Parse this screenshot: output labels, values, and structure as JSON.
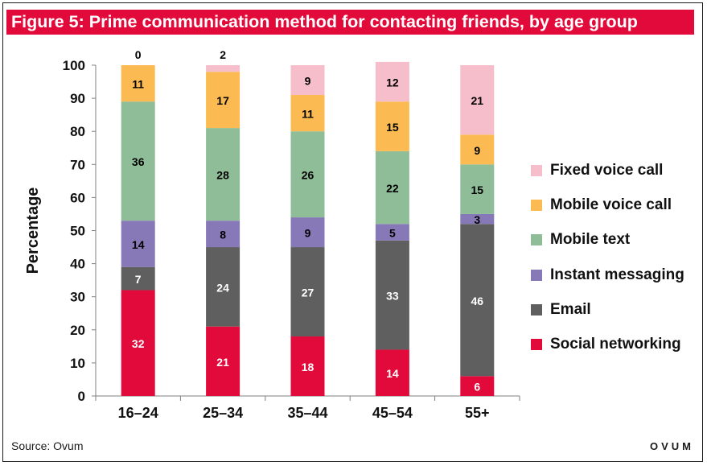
{
  "title": "Figure 5:  Prime communication method for contacting friends, by age group",
  "source": "Source: Ovum",
  "brand": "OVUM",
  "chart_data": {
    "type": "bar",
    "stacked": true,
    "categories": [
      "16–24",
      "25–34",
      "35–44",
      "45–54",
      "55+"
    ],
    "ylabel": "Percentage",
    "xlabel": "",
    "ylim": [
      0,
      100
    ],
    "yticks": [
      0,
      10,
      20,
      30,
      40,
      50,
      60,
      70,
      80,
      90,
      100
    ],
    "grid": false,
    "legend_position": "right",
    "series": [
      {
        "name": "Social networking",
        "color": "#e20a3a",
        "label_color": "#ffffff",
        "values": [
          32,
          21,
          18,
          14,
          6
        ]
      },
      {
        "name": "Email",
        "color": "#5f5f5f",
        "label_color": "#ffffff",
        "values": [
          7,
          24,
          27,
          33,
          46
        ]
      },
      {
        "name": "Instant messaging",
        "color": "#8779b8",
        "label_color": "#000000",
        "values": [
          14,
          8,
          9,
          5,
          3
        ]
      },
      {
        "name": "Mobile text",
        "color": "#8ebd98",
        "label_color": "#000000",
        "values": [
          36,
          28,
          26,
          22,
          15
        ]
      },
      {
        "name": "Mobile voice call",
        "color": "#fbbb52",
        "label_color": "#000000",
        "values": [
          11,
          17,
          11,
          15,
          9
        ]
      },
      {
        "name": "Fixed voice call",
        "color": "#f6bdca",
        "label_color": "#000000",
        "values": [
          0,
          2,
          9,
          12,
          21
        ]
      }
    ]
  }
}
